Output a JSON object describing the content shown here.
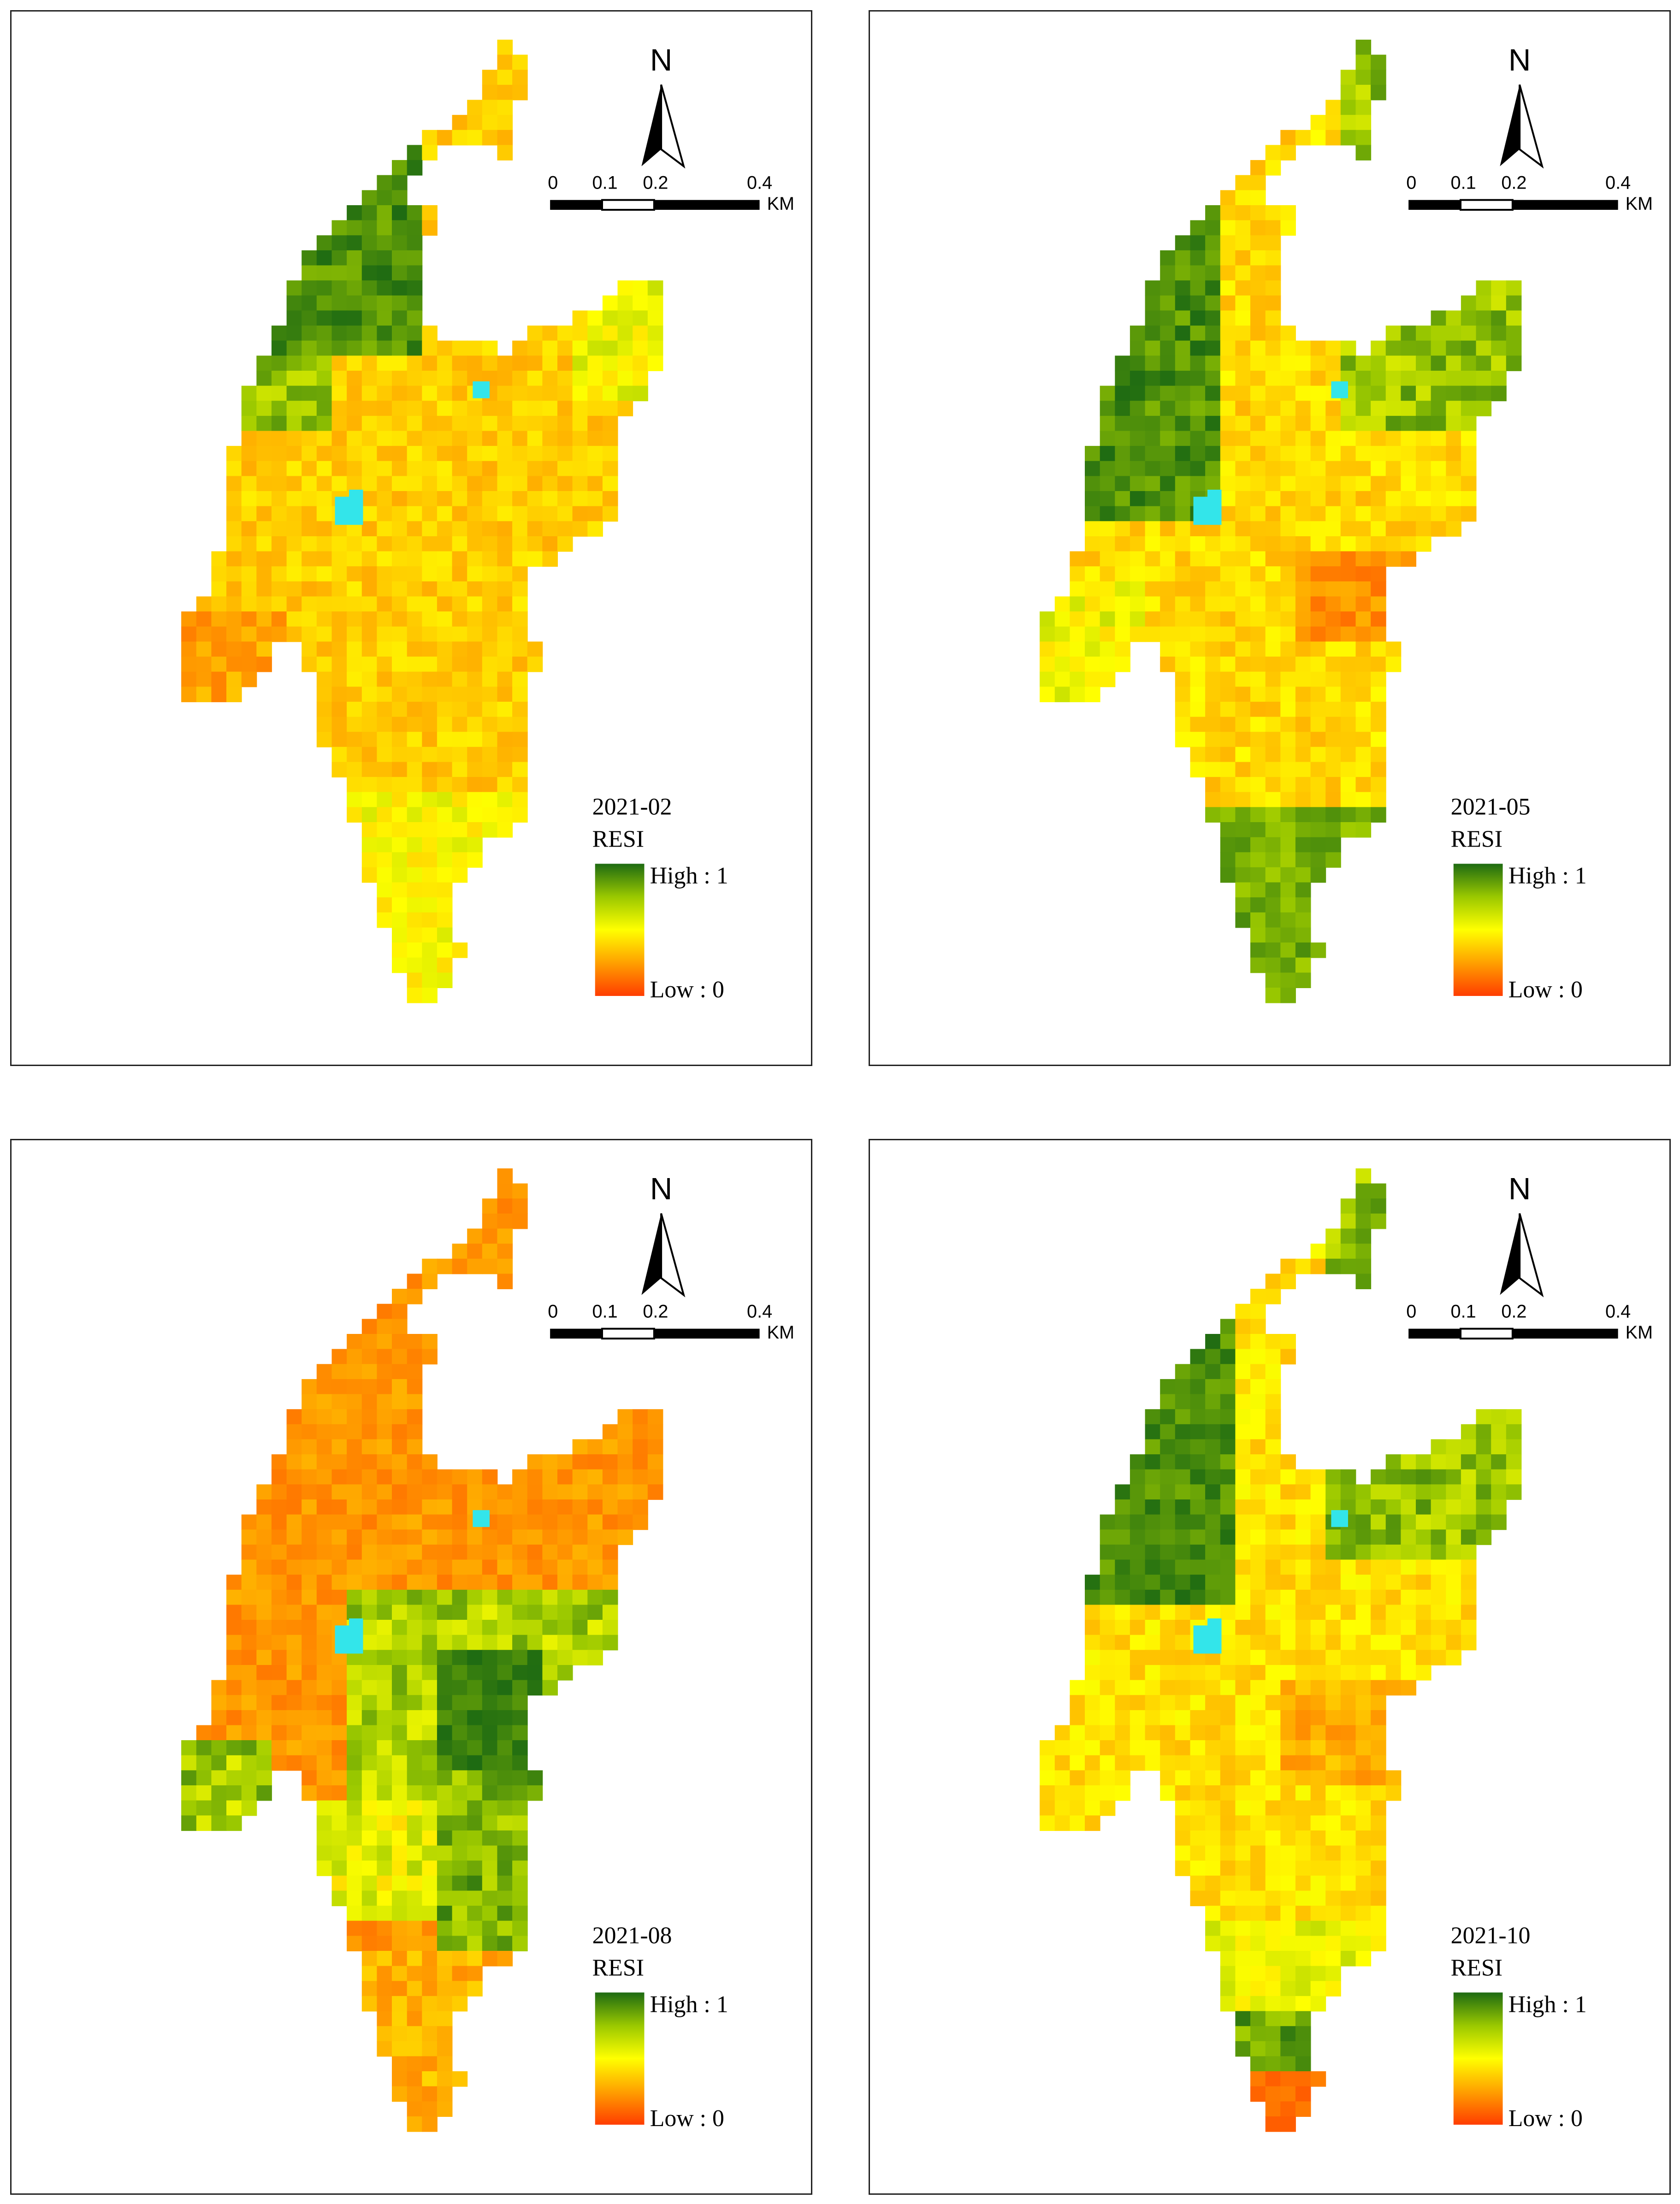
{
  "legend": {
    "variable": "RESI",
    "high_label": "High : 1",
    "low_label": "Low : 0",
    "ramp_colors": [
      "#1e6b12",
      "#9ac800",
      "#ffff00",
      "#ffa000",
      "#ff3d00"
    ],
    "nodata_color": "#33e5ea"
  },
  "north_arrow": {
    "label": "N"
  },
  "scale_bar": {
    "ticks": [
      "0",
      "0.1",
      "0.2",
      "0.4"
    ],
    "unit": "KM"
  },
  "panels": [
    {
      "id": "feb",
      "date": "2021-02",
      "dominant": "low"
    },
    {
      "id": "may",
      "date": "2021-05",
      "dominant": "mixed-green-north"
    },
    {
      "id": "aug",
      "date": "2021-08",
      "dominant": "low-north-green-center"
    },
    {
      "id": "oct",
      "date": "2021-10",
      "dominant": "mixed-green-north"
    }
  ]
}
